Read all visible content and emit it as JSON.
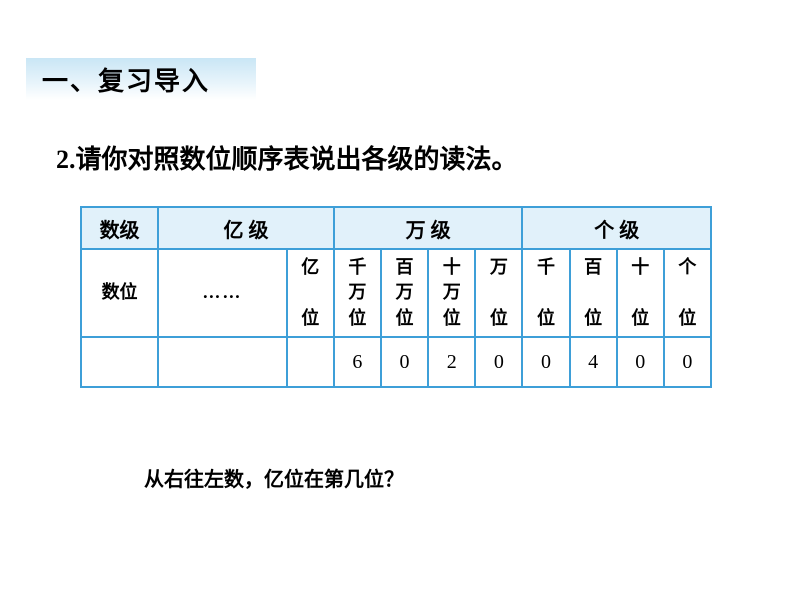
{
  "header": {
    "title": "一、复习导入"
  },
  "instruction": {
    "text": "2.请你对照数位顺序表说出各级的读法。"
  },
  "table": {
    "level_row": {
      "label": "数级",
      "groups": [
        "亿  级",
        "万    级",
        "个    级"
      ]
    },
    "position_row": {
      "label": "数位",
      "ellipsis": "……",
      "cells": [
        "亿位",
        "千万位",
        "百万位",
        "十万位",
        "万位",
        "千位",
        "百位",
        "十位",
        "个位"
      ]
    },
    "value_row": {
      "values": [
        "",
        "",
        "",
        "6",
        "0",
        "2",
        "0",
        "0",
        "4",
        "0",
        "0"
      ]
    },
    "colors": {
      "border": "#3e9fd8",
      "header_bg": "#e1f1fa",
      "cell_bg": "#ffffff",
      "text": "#000000"
    }
  },
  "question": {
    "text": "从右往左数，亿位在第几位？"
  }
}
